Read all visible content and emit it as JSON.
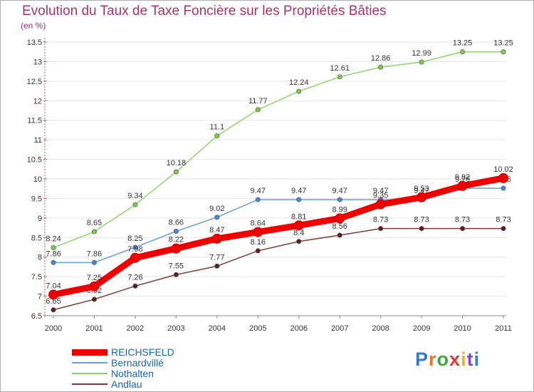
{
  "title": "Evolution du Taux de Taxe Foncière sur les Propriétés Bâties",
  "unit_label": "(en %)",
  "logo": {
    "letters": [
      "P",
      "r",
      "o",
      "x",
      "i",
      "t",
      "i"
    ],
    "colors": [
      "#2e7dd1",
      "#e8732a",
      "#3da83a",
      "#e53935",
      "#f2b01e",
      "#8e44ad",
      "#2e7dd1"
    ]
  },
  "chart_data": {
    "type": "line",
    "title": "Evolution du Taux de Taxe Foncière sur les Propriétés Bâties",
    "ylabel": "(en %)",
    "xlabel": "",
    "categories": [
      "2000",
      "2001",
      "2002",
      "2003",
      "2004",
      "2005",
      "2006",
      "2007",
      "2008",
      "2009",
      "2010",
      "2011"
    ],
    "ylim": [
      6.5,
      13.5
    ],
    "yticks": [
      "6.5",
      "7",
      "7.5",
      "8",
      "8.5",
      "9",
      "9.5",
      "10",
      "10.5",
      "11",
      "11.5",
      "12",
      "12.5",
      "13",
      "13.5"
    ],
    "grid": "horizontal",
    "legend_position": "bottom-left",
    "series": [
      {
        "name": "Nothalten",
        "color": "#8fd46a",
        "marker": "#7cc84a",
        "values": [
          8.24,
          8.65,
          9.34,
          10.18,
          11.1,
          11.77,
          12.24,
          12.61,
          12.86,
          12.99,
          13.25,
          13.25
        ],
        "labels": [
          "8.24",
          "8.65",
          "9.34",
          "10.18",
          "11.1",
          "11.77",
          "12.24",
          "12.61",
          "12.86",
          "12.99",
          "13.25",
          "13.25"
        ]
      },
      {
        "name": "Bernardvillé",
        "color": "#6a9fd8",
        "marker": "#4a86cc",
        "values": [
          7.86,
          7.86,
          8.25,
          8.66,
          9.02,
          9.47,
          9.47,
          9.47,
          9.47,
          9.47,
          9.76,
          9.76
        ],
        "labels": [
          "7.86",
          "7.86",
          "8.25",
          "8.66",
          "9.02",
          "9.47",
          "9.47",
          "9.47",
          "9.47",
          "9.47",
          "9.76",
          "9.76"
        ]
      },
      {
        "name": "Andlau",
        "color": "#7a3a3a",
        "marker": "#5a1e1e",
        "values": [
          6.65,
          6.92,
          7.26,
          7.55,
          7.77,
          8.16,
          8.4,
          8.56,
          8.73,
          8.73,
          8.73,
          8.73
        ],
        "labels": [
          "6.65",
          "6.92",
          "7.26",
          "7.55",
          "7.77",
          "8.16",
          "8.4",
          "8.56",
          "8.73",
          "8.73",
          "8.73",
          "8.73"
        ]
      },
      {
        "name": "REICHSFELD",
        "color": "#ee0000",
        "marker": "#ee0000",
        "values": [
          7.04,
          7.25,
          7.98,
          8.22,
          8.47,
          8.64,
          8.81,
          8.99,
          9.35,
          9.53,
          9.82,
          10.02
        ],
        "labels": [
          "7.04",
          "7.25",
          "7.98",
          "8.22",
          "8.47",
          "8.64",
          "8.81",
          "8.99",
          "9.35",
          "9.53",
          "9.82",
          "10.02"
        ]
      }
    ],
    "legend": [
      "REICHSFELD",
      "Bernardvillé",
      "Nothalten",
      "Andlau"
    ]
  }
}
